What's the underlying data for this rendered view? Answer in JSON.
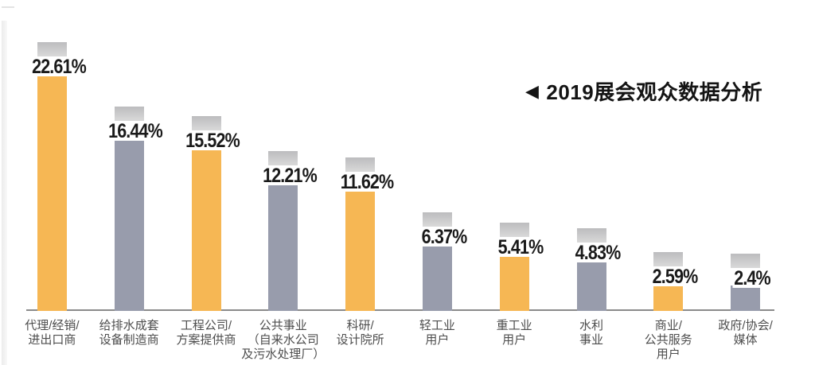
{
  "title": {
    "marker": "◀",
    "text": "2019展会观众数据分析"
  },
  "colors": {
    "orange": "#F6B754",
    "gray": "#989CAC",
    "cap_top": "#BCBCBE",
    "cap_bottom": "#D9D9D9",
    "axis": "#8A8A8A",
    "value_text": "#1A1A1A",
    "category_text": "#4D4D4D"
  },
  "chart_data": {
    "type": "bar",
    "title": "2019展会观众数据分析",
    "categories": [
      "代理/经销/进出口商",
      "给排水成套设备制造商",
      "工程公司/方案提供商",
      "公共事业（自来水公司及污水处理厂）",
      "科研/设计院所",
      "轻工业用户",
      "重工业用户",
      "水利事业",
      "商业/公共服务用户",
      "政府/协会/媒体"
    ],
    "category_lines": [
      [
        "代理/经销/",
        "进出口商"
      ],
      [
        "给排水成套",
        "设备制造商"
      ],
      [
        "工程公司/",
        "方案提供商"
      ],
      [
        "公共事业",
        "（自来水公司",
        "及污水处理厂）"
      ],
      [
        "科研/",
        "设计院所"
      ],
      [
        "轻工业",
        "用户"
      ],
      [
        "重工业",
        "用户"
      ],
      [
        "水利",
        "事业"
      ],
      [
        "商业/",
        "公共服务",
        "用户"
      ],
      [
        "政府/协会/",
        "媒体"
      ]
    ],
    "values": [
      22.61,
      16.44,
      15.52,
      12.21,
      11.62,
      6.37,
      5.41,
      4.83,
      2.59,
      2.4
    ],
    "value_labels": [
      "22.61%",
      "16.44%",
      "15.52%",
      "12.21%",
      "11.62%",
      "6.37%",
      "5.41%",
      "4.83%",
      "2.59%",
      "2.4%"
    ],
    "bar_colors": [
      "orange",
      "gray",
      "orange",
      "gray",
      "orange",
      "gray",
      "orange",
      "gray",
      "orange",
      "gray"
    ],
    "xlabel": "",
    "ylabel": "",
    "grid": false,
    "legend": false
  }
}
